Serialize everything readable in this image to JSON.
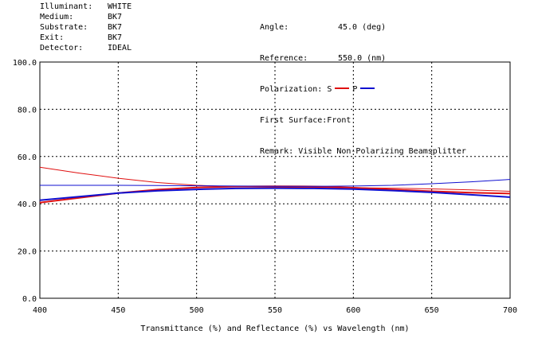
{
  "header": {
    "left": [
      {
        "label": "Illuminant:",
        "value": "WHITE"
      },
      {
        "label": "Medium:",
        "value": "BK7"
      },
      {
        "label": "Substrate:",
        "value": "BK7"
      },
      {
        "label": "Exit:",
        "value": "BK7"
      },
      {
        "label": "Detector:",
        "value": "IDEAL"
      }
    ],
    "right": {
      "angle_label": "Angle:",
      "angle_value": "45.0 (deg)",
      "reference_label": "Reference:",
      "reference_value": "550.0 (nm)",
      "polarization_label": "Polarization:",
      "s_label": "S",
      "p_label": "P",
      "first_surface_label": "First Surface:",
      "first_surface_value": "Front",
      "remark_label": "Remark:",
      "remark_value": "Visible Non-Polarizing Beamsplitter"
    }
  },
  "colors": {
    "s": "#e01010",
    "p": "#1010d0"
  },
  "chart_data": {
    "type": "line",
    "title": "",
    "xlabel": "Transmittance (%) and Reflectance (%)  vs  Wavelength (nm)",
    "ylabel": "",
    "xlim": [
      400,
      700
    ],
    "ylim": [
      0,
      100
    ],
    "x_ticks": [
      "400",
      "450",
      "500",
      "550",
      "600",
      "650",
      "700"
    ],
    "y_ticks": [
      "0.0",
      "20.0",
      "40.0",
      "60.0",
      "80.0",
      "100.0"
    ],
    "grid": true,
    "x": [
      400,
      425,
      450,
      475,
      500,
      525,
      550,
      575,
      600,
      625,
      650,
      675,
      700
    ],
    "series": [
      {
        "polarization": "S",
        "color": "#e01010",
        "width": 1,
        "values": [
          55.5,
          53.0,
          50.8,
          49.0,
          47.8,
          47.2,
          47.0,
          46.9,
          46.8,
          46.6,
          46.3,
          45.9,
          45.3
        ]
      },
      {
        "polarization": "S",
        "color": "#e01010",
        "width": 2,
        "values": [
          40.5,
          42.5,
          44.5,
          46.0,
          46.9,
          47.3,
          47.4,
          47.3,
          46.8,
          46.0,
          45.3,
          44.7,
          44.3
        ]
      },
      {
        "polarization": "P",
        "color": "#1010d0",
        "width": 1,
        "values": [
          47.8,
          47.8,
          47.8,
          47.7,
          47.6,
          47.5,
          47.4,
          47.4,
          47.5,
          47.8,
          48.5,
          49.3,
          50.3
        ]
      },
      {
        "polarization": "P",
        "color": "#1010d0",
        "width": 2,
        "values": [
          41.5,
          43.0,
          44.5,
          45.5,
          46.1,
          46.5,
          46.6,
          46.5,
          46.2,
          45.6,
          44.8,
          43.8,
          42.8
        ]
      }
    ]
  }
}
